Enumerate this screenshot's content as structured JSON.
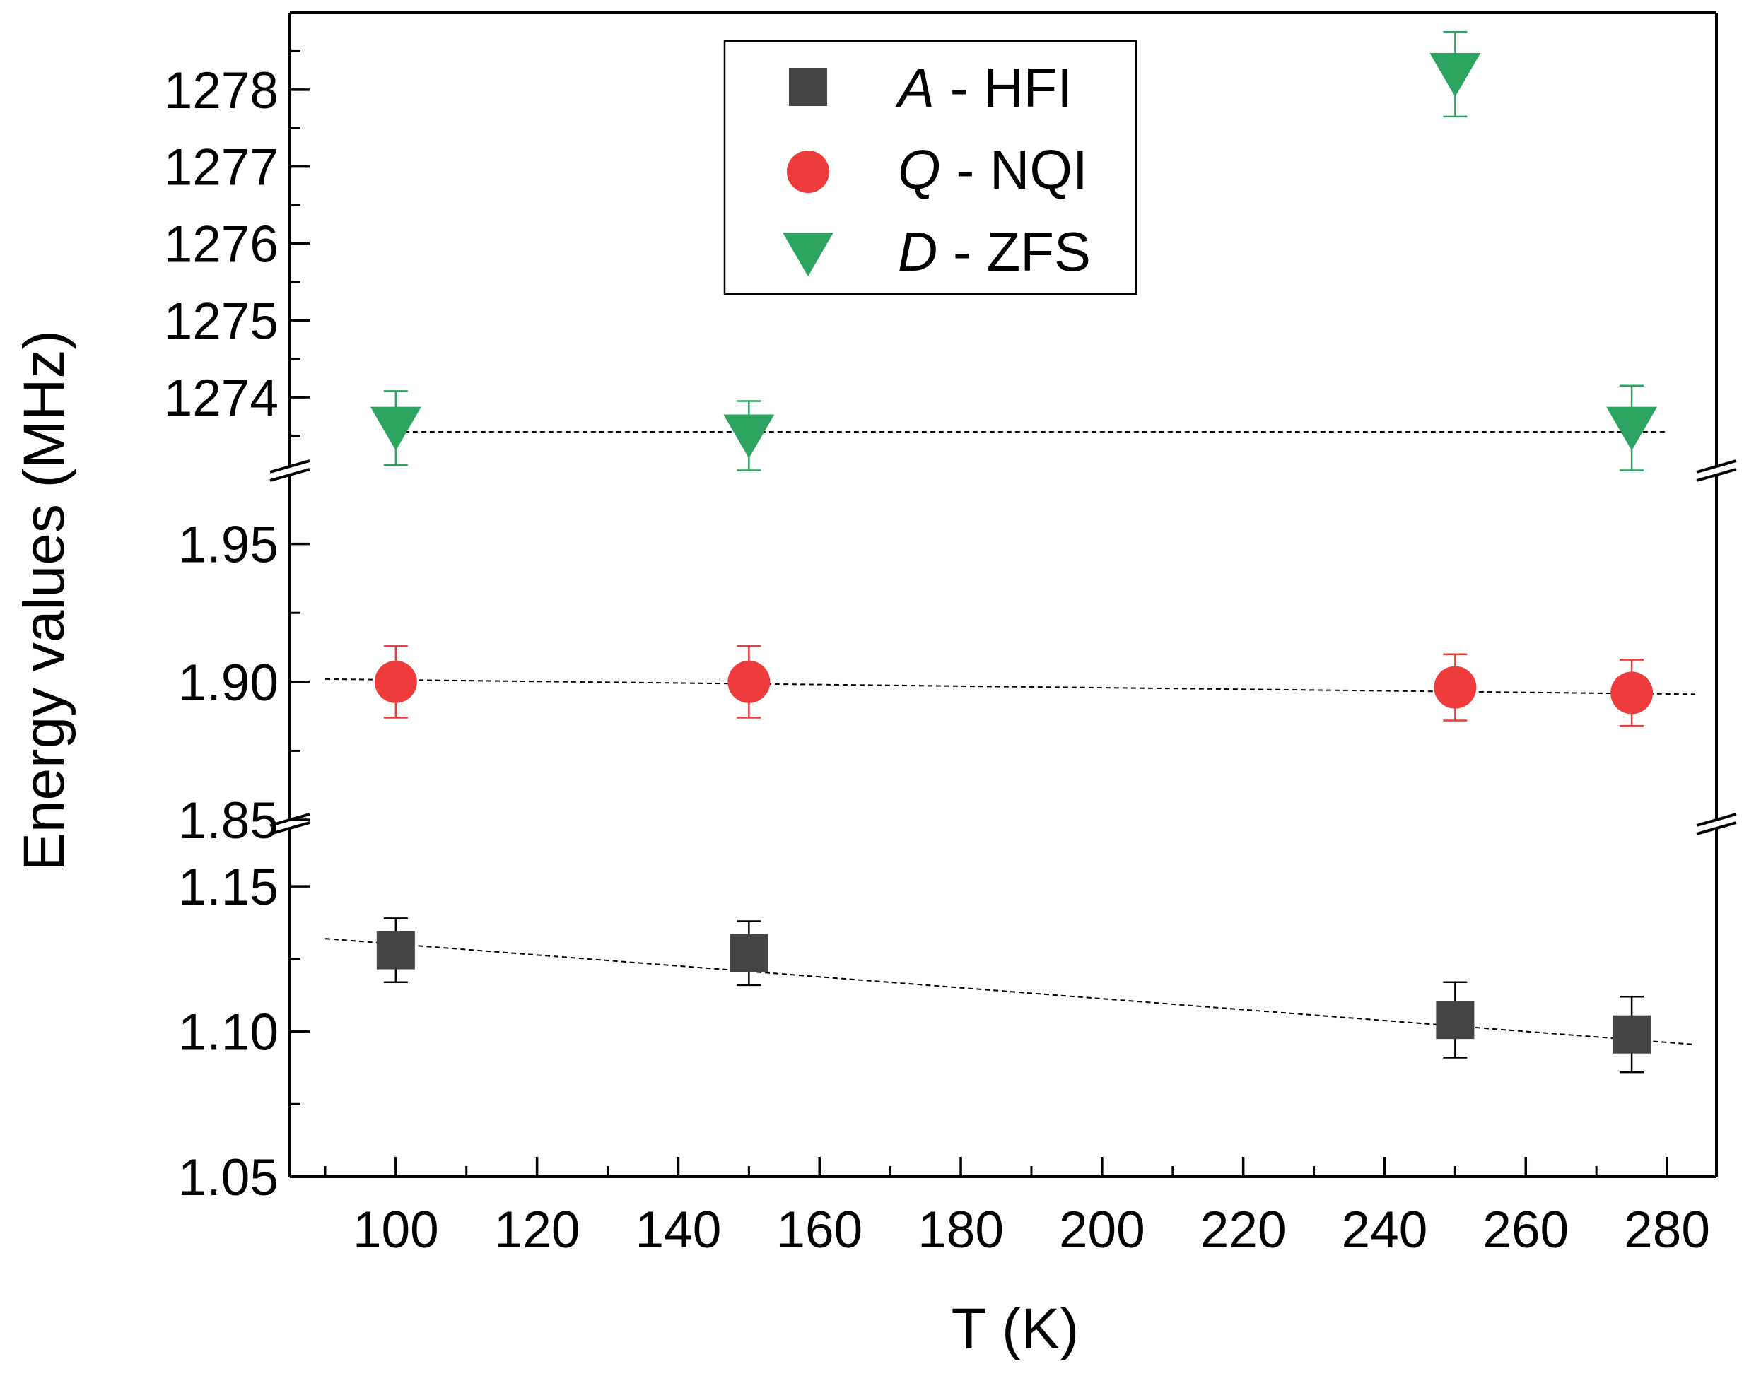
{
  "chart_data": {
    "type": "scatter",
    "title": "",
    "xlabel": "T (K)",
    "ylabel": "Energy values (MHz)",
    "xlim": [
      85,
      287
    ],
    "x_ticks": [
      100,
      120,
      140,
      160,
      180,
      200,
      220,
      240,
      260,
      280
    ],
    "broken_y_axis": true,
    "panels": [
      {
        "name": "ZFS",
        "ylim": [
          1273.1,
          1279.0
        ],
        "ticks": [
          "1274",
          "1275",
          "1276",
          "1277",
          "1278"
        ]
      },
      {
        "name": "NQI",
        "ylim": [
          1.85,
          1.975
        ],
        "ticks": [
          "1.85",
          "1.90",
          "1.95"
        ]
      },
      {
        "name": "HFI",
        "ylim": [
          1.05,
          1.17
        ],
        "ticks": [
          "1.05",
          "1.10",
          "1.15"
        ]
      }
    ],
    "series": [
      {
        "name": "A - HFI",
        "symbol": "A",
        "label_suffix": " - HFI",
        "marker": "square",
        "color": "#444444",
        "panel": 2,
        "x": [
          100,
          150,
          250,
          275
        ],
        "y": [
          1.128,
          1.127,
          1.104,
          1.099
        ],
        "err": [
          0.011,
          0.011,
          0.013,
          0.013
        ],
        "fit": {
          "x": [
            90,
            284
          ],
          "y": [
            1.132,
            1.0955
          ]
        }
      },
      {
        "name": "Q - NQI",
        "symbol": "Q",
        "label_suffix": " - NQI",
        "marker": "circle",
        "color": "#ee3b3b",
        "panel": 1,
        "x": [
          100,
          150,
          250,
          275
        ],
        "y": [
          1.9,
          1.9,
          1.898,
          1.896
        ],
        "err": [
          0.013,
          0.013,
          0.012,
          0.012
        ],
        "fit": {
          "x": [
            90,
            284
          ],
          "y": [
            1.901,
            1.8955
          ]
        }
      },
      {
        "name": "D - ZFS",
        "symbol": "D",
        "label_suffix": " - ZFS",
        "marker": "triangle-down",
        "color": "#2ca35f",
        "panel": 0,
        "x": [
          100,
          150,
          250,
          275
        ],
        "y": [
          1273.6,
          1273.5,
          1278.2,
          1273.6
        ],
        "err": [
          0.48,
          0.45,
          0.55,
          0.55
        ],
        "fit": {
          "x": [
            100,
            280
          ],
          "y": [
            1273.55,
            1273.55
          ]
        }
      }
    ],
    "legend": {
      "position": "top-center"
    }
  }
}
